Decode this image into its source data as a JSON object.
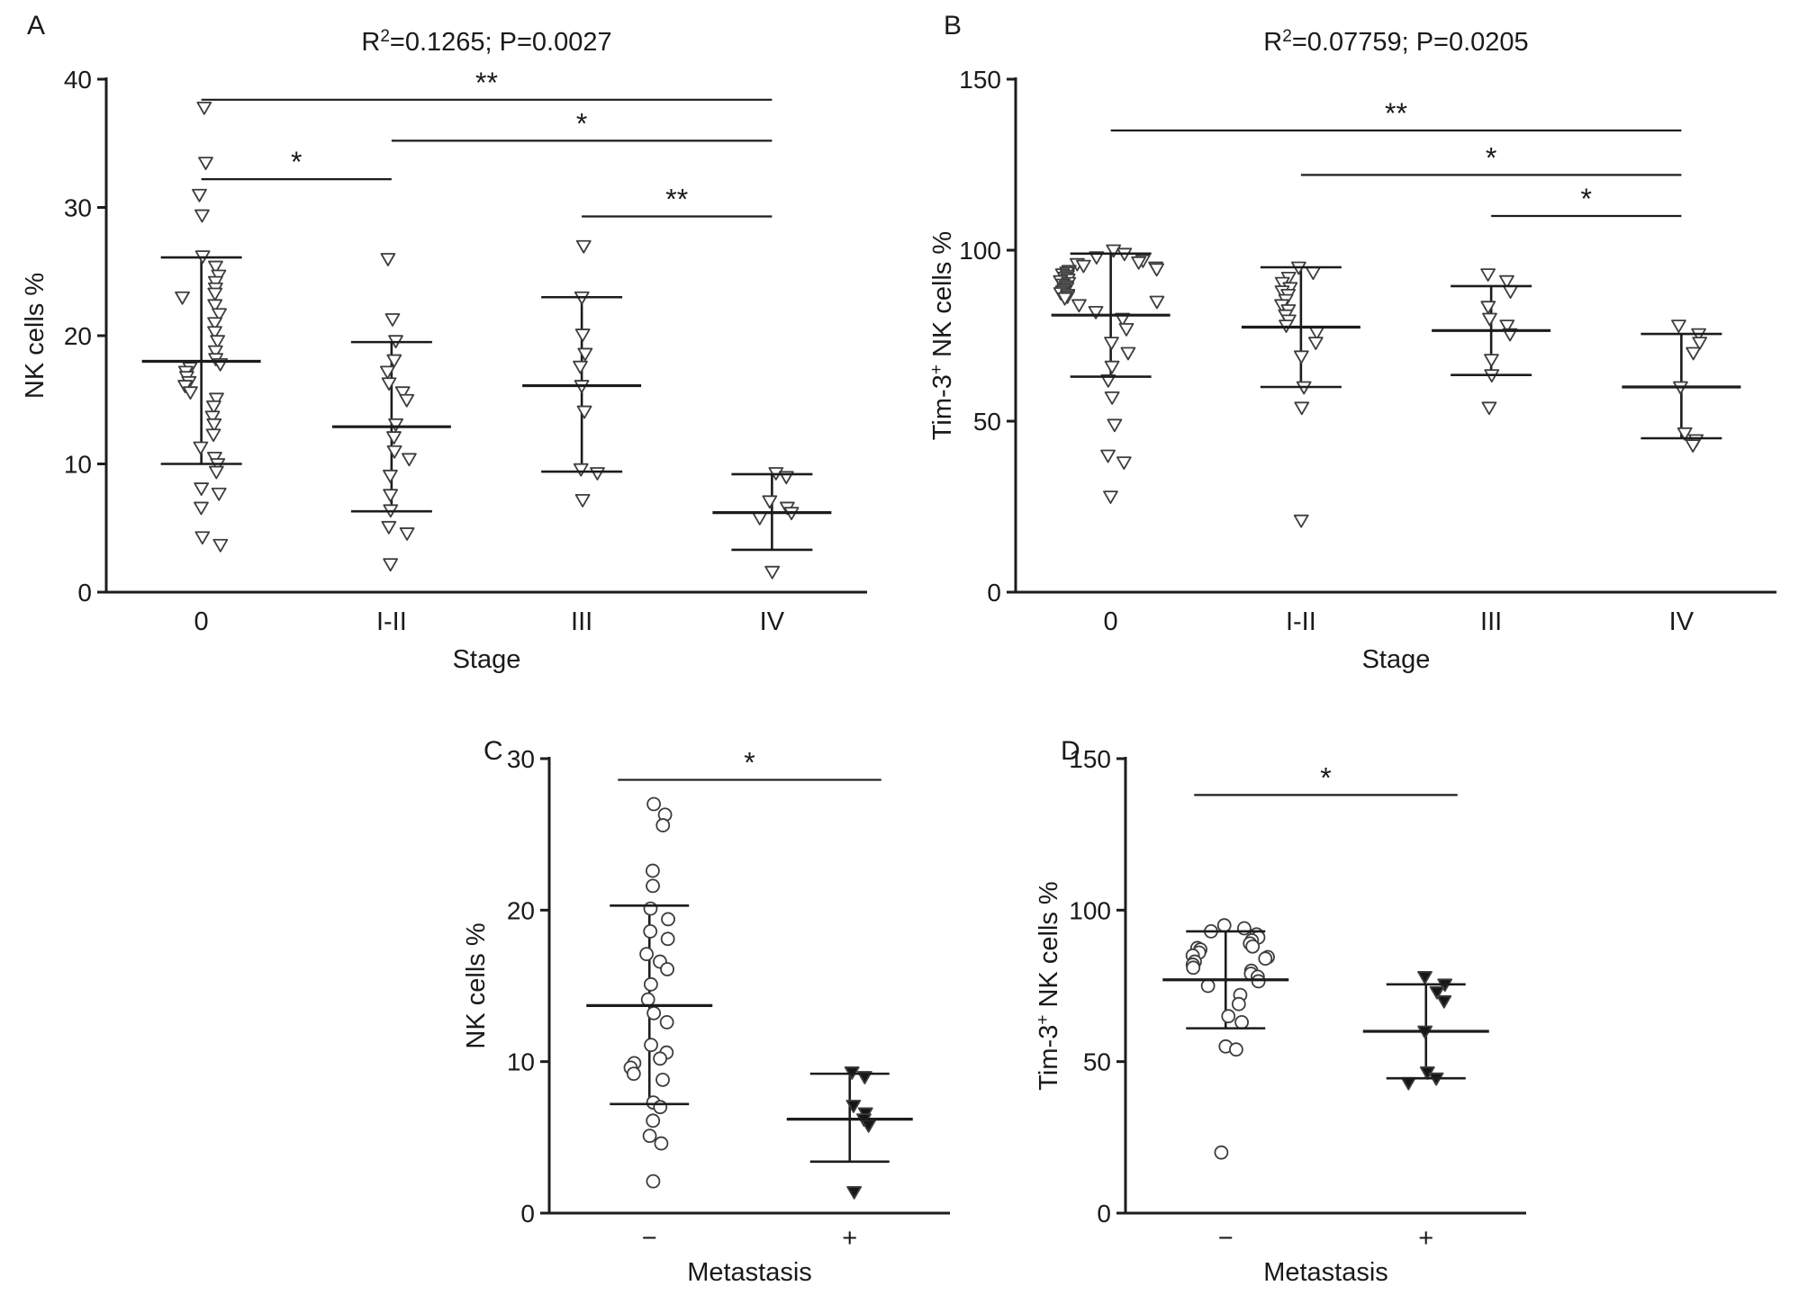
{
  "figure": {
    "background": "#ffffff",
    "text_color": "#1a1a1a",
    "axis_color": "#1c1c1c",
    "marker_stroke": "#3d3d3d",
    "marker_fill_open": "#ffffff",
    "marker_fill_solid": "#161616"
  },
  "chart_data": [
    {
      "id": "panel-a",
      "panel_label": "A",
      "type": "scatter",
      "title": "R²=0.1265; P=0.0027",
      "title_parts": [
        {
          "t": "R"
        },
        {
          "t": "2",
          "sup": true
        },
        {
          "t": "=0.1265; P=0.0027"
        }
      ],
      "xlabel": "Stage",
      "ylabel": "NK cells %",
      "ylabel_parts": [
        {
          "t": "NK cells %"
        }
      ],
      "ylim": [
        0,
        40
      ],
      "yticks": [
        0,
        10,
        20,
        30,
        40
      ],
      "categories": [
        "0",
        "I-II",
        "III",
        "IV"
      ],
      "legend": "none",
      "grid": false,
      "groups": [
        {
          "label": "0",
          "marker": "open-triangle-down",
          "mean": 18.0,
          "sd_low": 10.0,
          "sd_high": 26.1,
          "points": [
            37.8,
            33.5,
            31.0,
            29.4,
            26.2,
            25.4,
            24.7,
            24.2,
            23.7,
            23.3,
            23.0,
            22.4,
            21.7,
            21.0,
            20.3,
            19.6,
            18.8,
            18.2,
            17.8,
            17.5,
            17.2,
            16.8,
            16.4,
            16.1,
            15.6,
            15.1,
            14.5,
            13.7,
            13.1,
            12.3,
            11.3,
            10.5,
            10.0,
            9.4,
            8.1,
            7.7,
            6.6,
            4.3,
            3.7
          ]
        },
        {
          "label": "I-II",
          "marker": "open-triangle-down",
          "mean": 12.9,
          "sd_low": 6.3,
          "sd_high": 19.5,
          "points": [
            26.0,
            21.3,
            19.6,
            18.1,
            17.2,
            16.3,
            15.6,
            15.0,
            13.1,
            12.1,
            11.0,
            10.4,
            9.1,
            7.6,
            6.4,
            5.1,
            4.6,
            2.2
          ]
        },
        {
          "label": "III",
          "marker": "open-triangle-down",
          "mean": 16.1,
          "sd_low": 9.4,
          "sd_high": 23.0,
          "points": [
            27.0,
            23.0,
            20.1,
            18.6,
            17.6,
            16.1,
            14.1,
            9.6,
            9.3,
            7.2
          ]
        },
        {
          "label": "IV",
          "marker": "open-triangle-down",
          "mean": 6.2,
          "sd_low": 3.3,
          "sd_high": 9.2,
          "points": [
            9.3,
            9.0,
            7.1,
            6.6,
            6.2,
            5.8,
            1.6
          ]
        }
      ],
      "significance": [
        {
          "from": 0,
          "to": 3,
          "y": 38.4,
          "label": "**"
        },
        {
          "from": 1,
          "to": 3,
          "y": 35.2,
          "label": "*"
        },
        {
          "from": 0,
          "to": 1,
          "y": 32.2,
          "label": "*"
        },
        {
          "from": 2,
          "to": 3,
          "y": 29.3,
          "label": "**"
        }
      ]
    },
    {
      "id": "panel-b",
      "panel_label": "B",
      "type": "scatter",
      "title": "R²=0.07759; P=0.0205",
      "title_parts": [
        {
          "t": "R"
        },
        {
          "t": "2",
          "sup": true
        },
        {
          "t": "=0.07759; P=0.0205"
        }
      ],
      "xlabel": "Stage",
      "ylabel": "Tim-3⁺ NK cells %",
      "ylabel_parts": [
        {
          "t": "Tim-3"
        },
        {
          "t": "+",
          "sup": true
        },
        {
          "t": " NK cells %"
        }
      ],
      "ylim": [
        0,
        150
      ],
      "yticks": [
        0,
        50,
        100,
        150
      ],
      "categories": [
        "0",
        "I-II",
        "III",
        "IV"
      ],
      "legend": "none",
      "grid": false,
      "groups": [
        {
          "label": "0",
          "marker": "open-triangle-down",
          "mean": 81.0,
          "sd_low": 63.0,
          "sd_high": 99.0,
          "points": [
            100,
            99,
            98,
            97,
            96.5,
            96,
            95.5,
            95,
            94.5,
            94,
            93.5,
            93,
            92.5,
            92,
            91.5,
            91,
            90.5,
            90,
            89.5,
            89,
            88.5,
            88,
            87.5,
            87,
            86.5,
            86,
            85,
            84,
            82,
            80,
            77,
            73,
            70,
            66,
            62,
            57,
            49,
            40,
            38,
            28
          ]
        },
        {
          "label": "I-II",
          "marker": "open-triangle-down",
          "mean": 77.5,
          "sd_low": 60.0,
          "sd_high": 95.0,
          "points": [
            95,
            93.5,
            92,
            90.5,
            89,
            88,
            87,
            85.5,
            84,
            82.5,
            81,
            79.5,
            78,
            76,
            73,
            69,
            60,
            54,
            21
          ]
        },
        {
          "label": "III",
          "marker": "open-triangle-down",
          "mean": 76.5,
          "sd_low": 63.5,
          "sd_high": 89.5,
          "points": [
            93,
            91,
            88,
            83.5,
            80,
            78,
            75.5,
            68,
            63.5,
            54
          ]
        },
        {
          "label": "IV",
          "marker": "open-triangle-down",
          "mean": 60.0,
          "sd_low": 45.0,
          "sd_high": 75.5,
          "points": [
            78,
            75.5,
            73,
            70,
            60,
            46.5,
            44.5,
            43
          ]
        }
      ],
      "significance": [
        {
          "from": 0,
          "to": 3,
          "y": 135,
          "label": "**"
        },
        {
          "from": 1,
          "to": 3,
          "y": 122,
          "label": "*"
        },
        {
          "from": 2,
          "to": 3,
          "y": 110,
          "label": "*"
        }
      ]
    },
    {
      "id": "panel-c",
      "panel_label": "C",
      "type": "scatter",
      "title": "",
      "xlabel": "Metastasis",
      "ylabel": "NK cells %",
      "ylabel_parts": [
        {
          "t": "NK cells %"
        }
      ],
      "ylim": [
        0,
        30
      ],
      "yticks": [
        0,
        10,
        20,
        30
      ],
      "categories": [
        "−",
        "+"
      ],
      "legend": "none",
      "grid": false,
      "groups": [
        {
          "label": "−",
          "marker": "open-circle",
          "mean": 13.7,
          "sd_low": 7.2,
          "sd_high": 20.3,
          "points": [
            27.0,
            26.3,
            25.6,
            22.6,
            21.6,
            20.1,
            19.4,
            18.6,
            18.1,
            17.1,
            16.6,
            16.1,
            15.1,
            14.1,
            13.2,
            12.6,
            11.1,
            10.6,
            10.2,
            9.9,
            9.6,
            9.2,
            8.8,
            7.3,
            7.0,
            6.1,
            5.1,
            4.6,
            2.1
          ]
        },
        {
          "label": "+",
          "marker": "filled-triangle-down",
          "mean": 6.2,
          "sd_low": 3.4,
          "sd_high": 9.2,
          "points": [
            9.3,
            9.0,
            7.1,
            6.6,
            6.2,
            5.8,
            1.4
          ]
        }
      ],
      "significance": [
        {
          "from": 0,
          "to": 1,
          "y": 28.6,
          "label": "*"
        }
      ]
    },
    {
      "id": "panel-d",
      "panel_label": "D",
      "type": "scatter",
      "title": "",
      "xlabel": "Metastasis",
      "ylabel": "Tim-3⁺ NK cells %",
      "ylabel_parts": [
        {
          "t": "Tim-3"
        },
        {
          "t": "+",
          "sup": true
        },
        {
          "t": " NK cells %"
        }
      ],
      "ylim": [
        0,
        150
      ],
      "yticks": [
        0,
        50,
        100,
        150
      ],
      "categories": [
        "−",
        "+"
      ],
      "legend": "none",
      "grid": false,
      "groups": [
        {
          "label": "−",
          "marker": "open-circle",
          "mean": 77.0,
          "sd_low": 61.0,
          "sd_high": 93.0,
          "points": [
            95,
            94,
            93,
            92,
            91,
            90,
            89,
            88,
            87.5,
            87,
            86,
            85,
            84.5,
            84,
            83,
            82,
            81,
            80,
            79,
            78,
            76.5,
            75,
            72,
            69,
            65,
            63,
            55,
            54,
            20
          ]
        },
        {
          "label": "+",
          "marker": "filled-triangle-down",
          "mean": 60.0,
          "sd_low": 44.5,
          "sd_high": 75.5,
          "points": [
            78,
            75.5,
            73,
            70,
            60,
            46.5,
            44.5,
            43
          ]
        }
      ],
      "significance": [
        {
          "from": 0,
          "to": 1,
          "y": 138,
          "label": "*"
        }
      ]
    }
  ]
}
